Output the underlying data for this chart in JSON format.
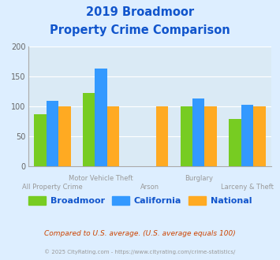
{
  "title_line1": "2019 Broadmoor",
  "title_line2": "Property Crime Comparison",
  "categories": [
    "All Property Crime",
    "Motor Vehicle Theft",
    "Arson",
    "Burglary",
    "Larceny & Theft"
  ],
  "broadmoor": [
    87,
    123,
    0,
    100,
    79
  ],
  "california": [
    110,
    163,
    0,
    113,
    103
  ],
  "national": [
    100,
    100,
    100,
    100,
    100
  ],
  "color_broadmoor": "#77cc22",
  "color_california": "#3399ff",
  "color_national": "#ffaa22",
  "ylim": [
    0,
    200
  ],
  "yticks": [
    0,
    50,
    100,
    150,
    200
  ],
  "background_color": "#ddeeff",
  "plot_bg": "#daeaf5",
  "title_color": "#1155cc",
  "footer_color": "#cc4400",
  "copyright_color": "#999999",
  "legend_labels": [
    "Broadmoor",
    "California",
    "National"
  ],
  "footer_text": "Compared to U.S. average. (U.S. average equals 100)",
  "copyright_text": "© 2025 CityRating.com - https://www.cityrating.com/crime-statistics/",
  "x_positions": [
    0.5,
    1.5,
    2.5,
    3.5,
    4.5
  ],
  "bar_width": 0.25,
  "top_xlabels": {
    "1": "Motor Vehicle Theft",
    "3": "Burglary"
  },
  "bot_xlabels": {
    "0": "All Property Crime",
    "2": "Arson",
    "4": "Larceny & Theft"
  }
}
